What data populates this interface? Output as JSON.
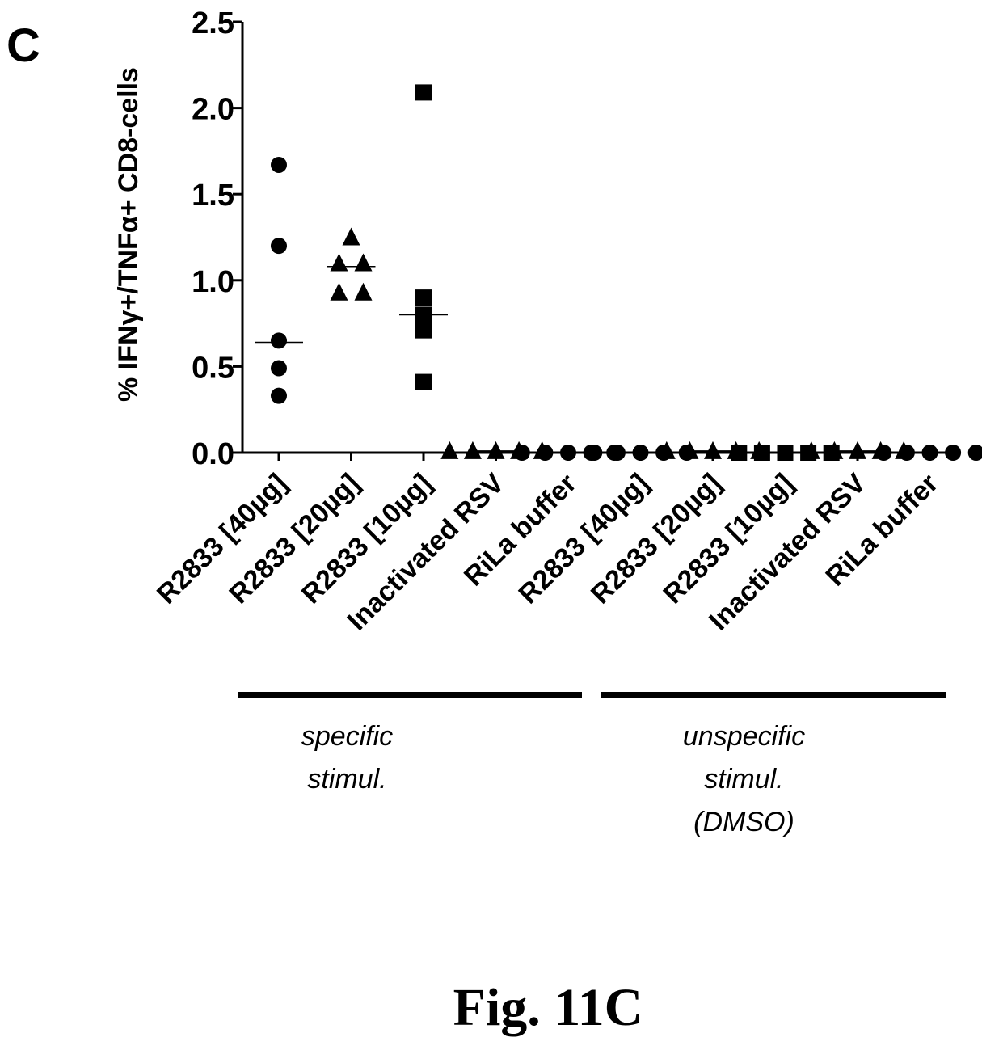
{
  "panel_label": "C",
  "figure_caption": "Fig. 11C",
  "chart_data": {
    "type": "scatter",
    "ylabel": "% IFNγ+/TNFα+ CD8-cells",
    "xlabel": "",
    "ylim": [
      0,
      2.5
    ],
    "yticks": [
      "0.0",
      "0.5",
      "1.0",
      "1.5",
      "2.0",
      "2.5"
    ],
    "categories": [
      "R2833 [40µg]",
      "R2833 [20µg]",
      "R2833 [10µg]",
      "Inactivated RSV",
      "RiLa buffer",
      "R2833 [40µg]",
      "R2833 [20µg]",
      "R2833 [10µg]",
      "Inactivated RSV",
      "RiLa buffer"
    ],
    "series": [
      {
        "marker": "circle",
        "values": [
          1.67,
          1.2,
          0.65,
          0.49,
          0.33
        ],
        "median": 0.64
      },
      {
        "marker": "triangle",
        "values": [
          1.25,
          1.1,
          1.1,
          0.93,
          0.93
        ],
        "median": 1.08
      },
      {
        "marker": "square",
        "values": [
          2.09,
          0.9,
          0.8,
          0.71,
          0.41
        ],
        "median": 0.8
      },
      {
        "marker": "triangle",
        "values": [
          0.01,
          0.01,
          0.01,
          0.01,
          0.01
        ],
        "median": 0.01
      },
      {
        "marker": "circle",
        "values": [
          0.0,
          0.0,
          0.0,
          0.0,
          0.0
        ],
        "median": 0.0
      },
      {
        "marker": "circle",
        "values": [
          0.0,
          0.0,
          0.0,
          0.0,
          0.0
        ],
        "median": 0.0
      },
      {
        "marker": "triangle",
        "values": [
          0.01,
          0.01,
          0.01,
          0.01,
          0.01
        ],
        "median": 0.01
      },
      {
        "marker": "square",
        "values": [
          0.0,
          0.0,
          0.0,
          0.0,
          0.0
        ],
        "median": 0.0
      },
      {
        "marker": "triangle",
        "values": [
          0.01,
          0.01,
          0.01,
          0.01,
          0.01
        ],
        "median": 0.01
      },
      {
        "marker": "circle",
        "values": [
          0.0,
          0.0,
          0.0,
          0.0,
          0.0
        ],
        "median": 0.0
      }
    ],
    "groups": [
      {
        "lines": [
          "specific",
          "stimul."
        ]
      },
      {
        "lines": [
          "unspecific",
          "stimul.",
          "(DMSO)"
        ]
      }
    ]
  }
}
